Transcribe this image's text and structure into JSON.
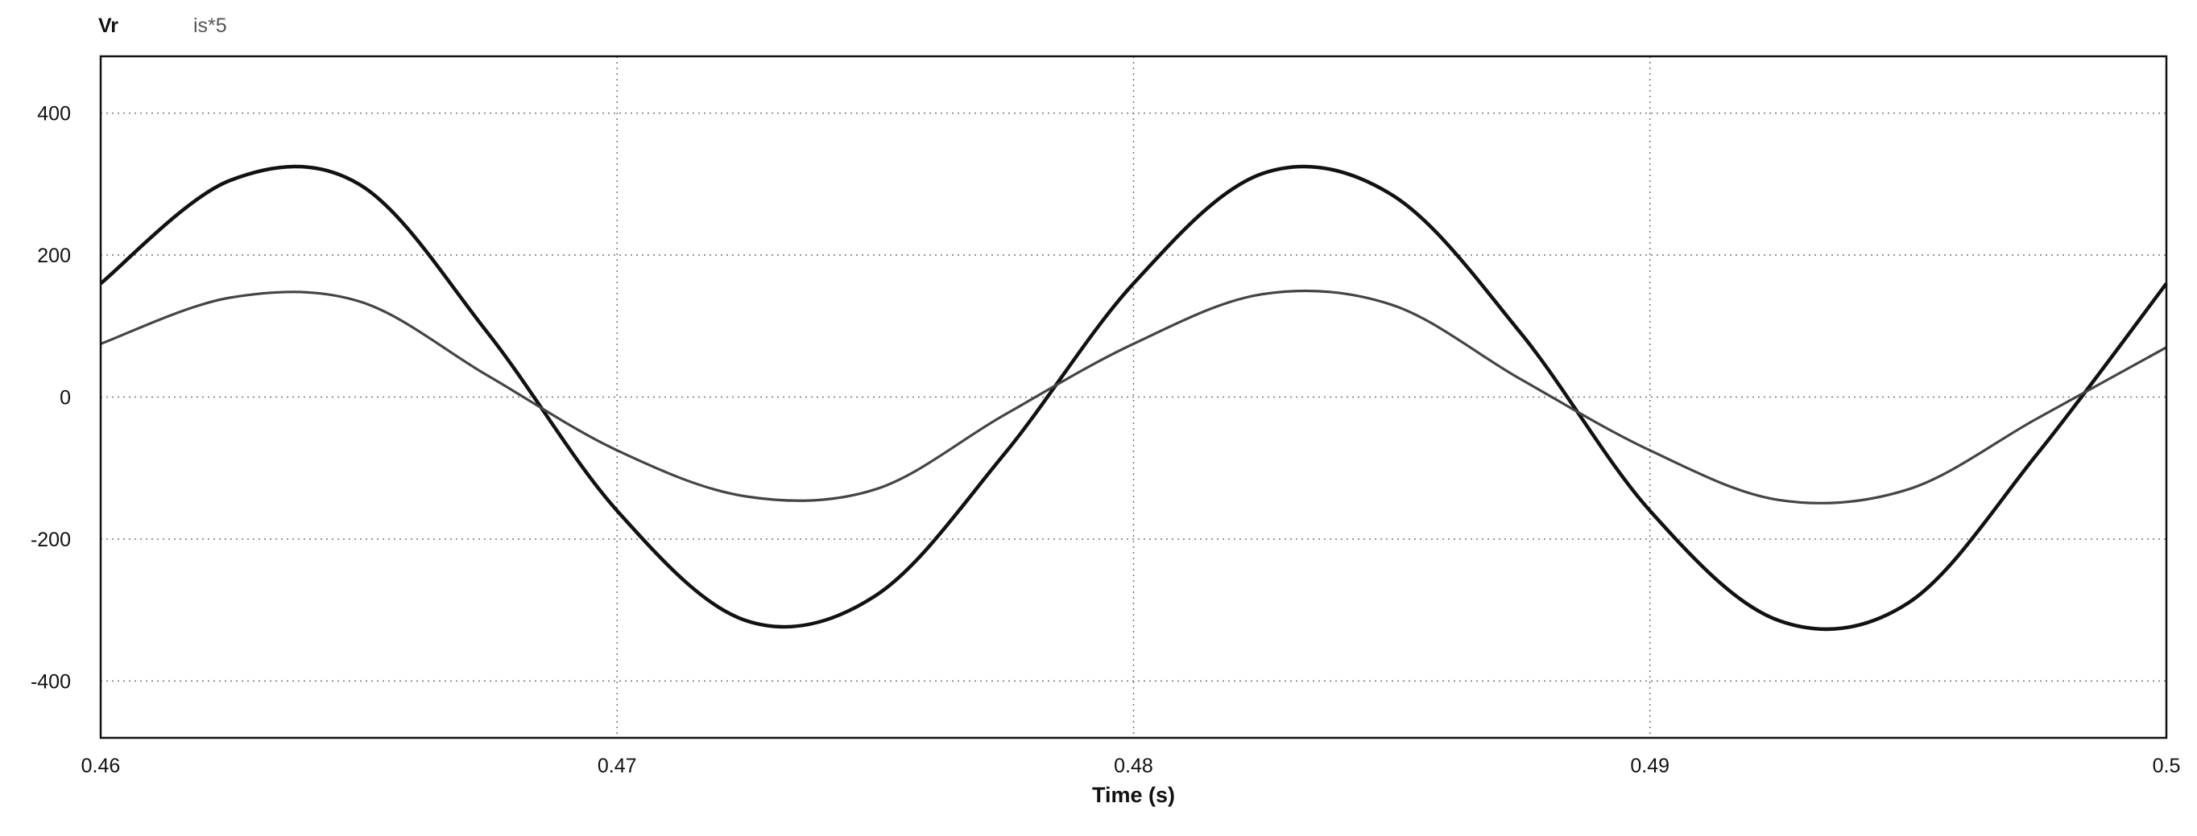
{
  "chart_data": {
    "type": "line",
    "title": "",
    "xlabel": "Time (s)",
    "ylabel": "",
    "xlim": [
      0.46,
      0.5
    ],
    "ylim": [
      -480,
      480
    ],
    "grid": true,
    "legend_position": "top-left",
    "x_ticks": [
      "0.46",
      "0.47",
      "0.48",
      "0.49",
      "0.5"
    ],
    "x_tick_values": [
      0.46,
      0.47,
      0.48,
      0.49,
      0.5
    ],
    "y_ticks": [
      "400",
      "200",
      "0",
      "-200",
      "-400"
    ],
    "y_tick_values": [
      400,
      200,
      0,
      -200,
      -400
    ],
    "series": [
      {
        "name": "Vr",
        "color": "#111111",
        "x": [
          0.46,
          0.4625,
          0.465,
          0.4675,
          0.47,
          0.4725,
          0.475,
          0.4775,
          0.48,
          0.4825,
          0.485,
          0.4875,
          0.49,
          0.4925,
          0.495,
          0.4975,
          0.5
        ],
        "values": [
          160,
          305,
          300,
          90,
          -160,
          -315,
          -280,
          -80,
          160,
          315,
          285,
          90,
          -160,
          -315,
          -290,
          -80,
          160
        ]
      },
      {
        "name": "is*5",
        "color": "#444444",
        "x": [
          0.46,
          0.4625,
          0.465,
          0.4675,
          0.47,
          0.4725,
          0.475,
          0.4775,
          0.48,
          0.4825,
          0.485,
          0.4875,
          0.49,
          0.4925,
          0.495,
          0.4975,
          0.5
        ],
        "values": [
          75,
          140,
          135,
          30,
          -75,
          -140,
          -130,
          -25,
          75,
          145,
          130,
          25,
          -75,
          -145,
          -130,
          -30,
          70
        ]
      }
    ]
  }
}
